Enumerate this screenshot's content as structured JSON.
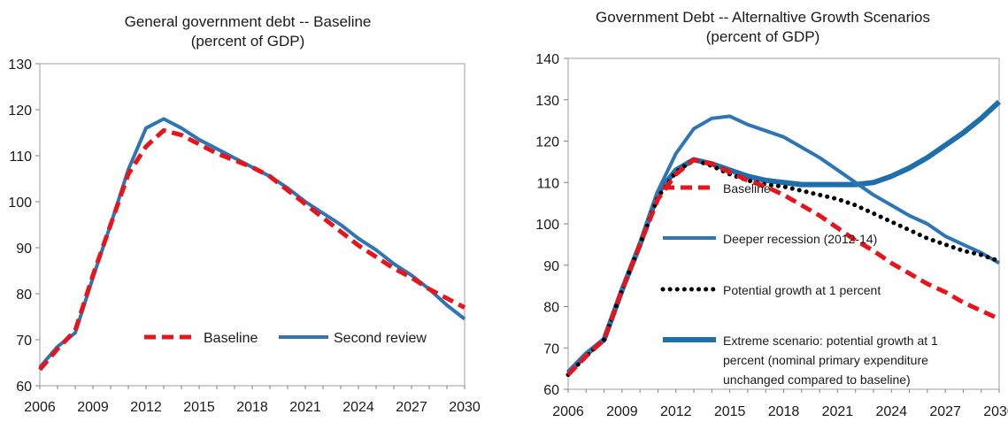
{
  "chart_data": [
    {
      "type": "line",
      "title": "General government debt -- Baseline",
      "subtitle": "(percent of GDP)",
      "x_ticks": [
        "2006",
        "2009",
        "2012",
        "2015",
        "2018",
        "2021",
        "2024",
        "2027",
        "2030"
      ],
      "xlim": [
        2006,
        2030
      ],
      "ylim": [
        60,
        130
      ],
      "y_ticks": [
        60,
        70,
        80,
        90,
        100,
        110,
        120,
        130
      ],
      "legend_position": "bottom-right",
      "series": [
        {
          "name": "Baseline",
          "style": "dashed",
          "color": "#e8141b",
          "x": [
            2006,
            2007,
            2008,
            2009,
            2010,
            2011,
            2012,
            2013,
            2014,
            2015,
            2016,
            2017,
            2018,
            2019,
            2020,
            2021,
            2022,
            2023,
            2024,
            2025,
            2026,
            2027,
            2028,
            2029,
            2030
          ],
          "y": [
            63.5,
            68,
            72,
            84,
            95,
            106,
            112,
            115.5,
            114.5,
            112.5,
            110.5,
            109,
            107.5,
            105.5,
            102.5,
            99.5,
            96.5,
            93.5,
            90.5,
            88,
            85.5,
            83.5,
            81,
            79,
            77
          ]
        },
        {
          "name": "Second review",
          "style": "solid",
          "color": "#2e75b6",
          "x": [
            2006,
            2007,
            2008,
            2009,
            2010,
            2011,
            2012,
            2013,
            2014,
            2015,
            2016,
            2017,
            2018,
            2019,
            2020,
            2021,
            2022,
            2023,
            2024,
            2025,
            2026,
            2027,
            2028,
            2029,
            2030
          ],
          "y": [
            64,
            68.5,
            71.5,
            83.5,
            95,
            107,
            116,
            118,
            116,
            113.5,
            111.5,
            109.5,
            107.5,
            105.5,
            103,
            100,
            97.5,
            95,
            92,
            89.5,
            86.5,
            84,
            81,
            77.5,
            74.5
          ]
        }
      ]
    },
    {
      "type": "line",
      "title": "Government Debt -- Alternaltive Growth Scenarios",
      "subtitle": "(percent of GDP)",
      "x_ticks": [
        "2006",
        "2009",
        "2012",
        "2015",
        "2018",
        "2021",
        "2024",
        "2027",
        "2030"
      ],
      "xlim": [
        2006,
        2030
      ],
      "ylim": [
        60,
        140
      ],
      "y_ticks": [
        60,
        70,
        80,
        90,
        100,
        110,
        120,
        130,
        140
      ],
      "legend_position": "left-inside",
      "series": [
        {
          "name": "Baseline",
          "style": "dashed",
          "color": "#e8141b",
          "x": [
            2006,
            2007,
            2008,
            2009,
            2010,
            2011,
            2012,
            2013,
            2014,
            2015,
            2016,
            2017,
            2018,
            2019,
            2020,
            2021,
            2022,
            2023,
            2024,
            2025,
            2026,
            2027,
            2028,
            2029,
            2030
          ],
          "y": [
            63.5,
            68,
            72,
            84,
            95,
            106,
            112,
            115.5,
            114.5,
            112.5,
            110.5,
            109,
            107,
            104.5,
            102,
            99,
            96,
            93.5,
            90.5,
            88,
            85.5,
            83.5,
            81,
            79,
            77
          ]
        },
        {
          "name": "Deeper recession (2012-14)",
          "style": "solid",
          "color": "#2e75b6",
          "x": [
            2006,
            2007,
            2008,
            2009,
            2010,
            2011,
            2012,
            2013,
            2014,
            2015,
            2016,
            2017,
            2018,
            2019,
            2020,
            2021,
            2022,
            2023,
            2024,
            2025,
            2026,
            2027,
            2028,
            2029,
            2030
          ],
          "y": [
            64,
            68.5,
            72,
            84,
            95,
            108,
            117,
            123,
            125.5,
            126,
            124,
            122.5,
            121,
            118.5,
            116,
            113,
            110,
            107,
            104.5,
            102,
            100,
            97,
            95,
            93,
            90.5
          ]
        },
        {
          "name": "Potential growth at 1 percent",
          "style": "dotted",
          "color": "#000000",
          "x": [
            2006,
            2007,
            2008,
            2009,
            2010,
            2011,
            2012,
            2013,
            2014,
            2015,
            2016,
            2017,
            2018,
            2019,
            2020,
            2021,
            2022,
            2023,
            2024,
            2025,
            2026,
            2027,
            2028,
            2029,
            2030
          ],
          "y": [
            63.5,
            68,
            72,
            84,
            95,
            106.5,
            112.5,
            115.5,
            114,
            112,
            110.5,
            109.5,
            109,
            108,
            107,
            106,
            104.5,
            102.5,
            100.5,
            98.5,
            96.5,
            95,
            93.5,
            92.5,
            91
          ]
        },
        {
          "name": "Extreme scenario: potential  growth at 1 percent (nominal primary expenditure unchanged compared to baseline)",
          "legend_lines": [
            "Extreme scenario: potential  growth at 1",
            "percent (nominal primary expenditure",
            "unchanged compared to baseline)"
          ],
          "style": "solid-thick",
          "color": "#1f6fad",
          "x": [
            2006,
            2007,
            2008,
            2009,
            2010,
            2011,
            2012,
            2013,
            2014,
            2015,
            2016,
            2017,
            2018,
            2019,
            2020,
            2021,
            2022,
            2023,
            2024,
            2025,
            2026,
            2027,
            2028,
            2029,
            2030
          ],
          "y": [
            64,
            68.5,
            72,
            84,
            95,
            107.5,
            113,
            115.5,
            114.5,
            113,
            111.5,
            110.5,
            110,
            109.5,
            109.5,
            109.5,
            109.5,
            110,
            111.5,
            113.5,
            116,
            119,
            122,
            125.5,
            129.5
          ]
        }
      ]
    }
  ]
}
